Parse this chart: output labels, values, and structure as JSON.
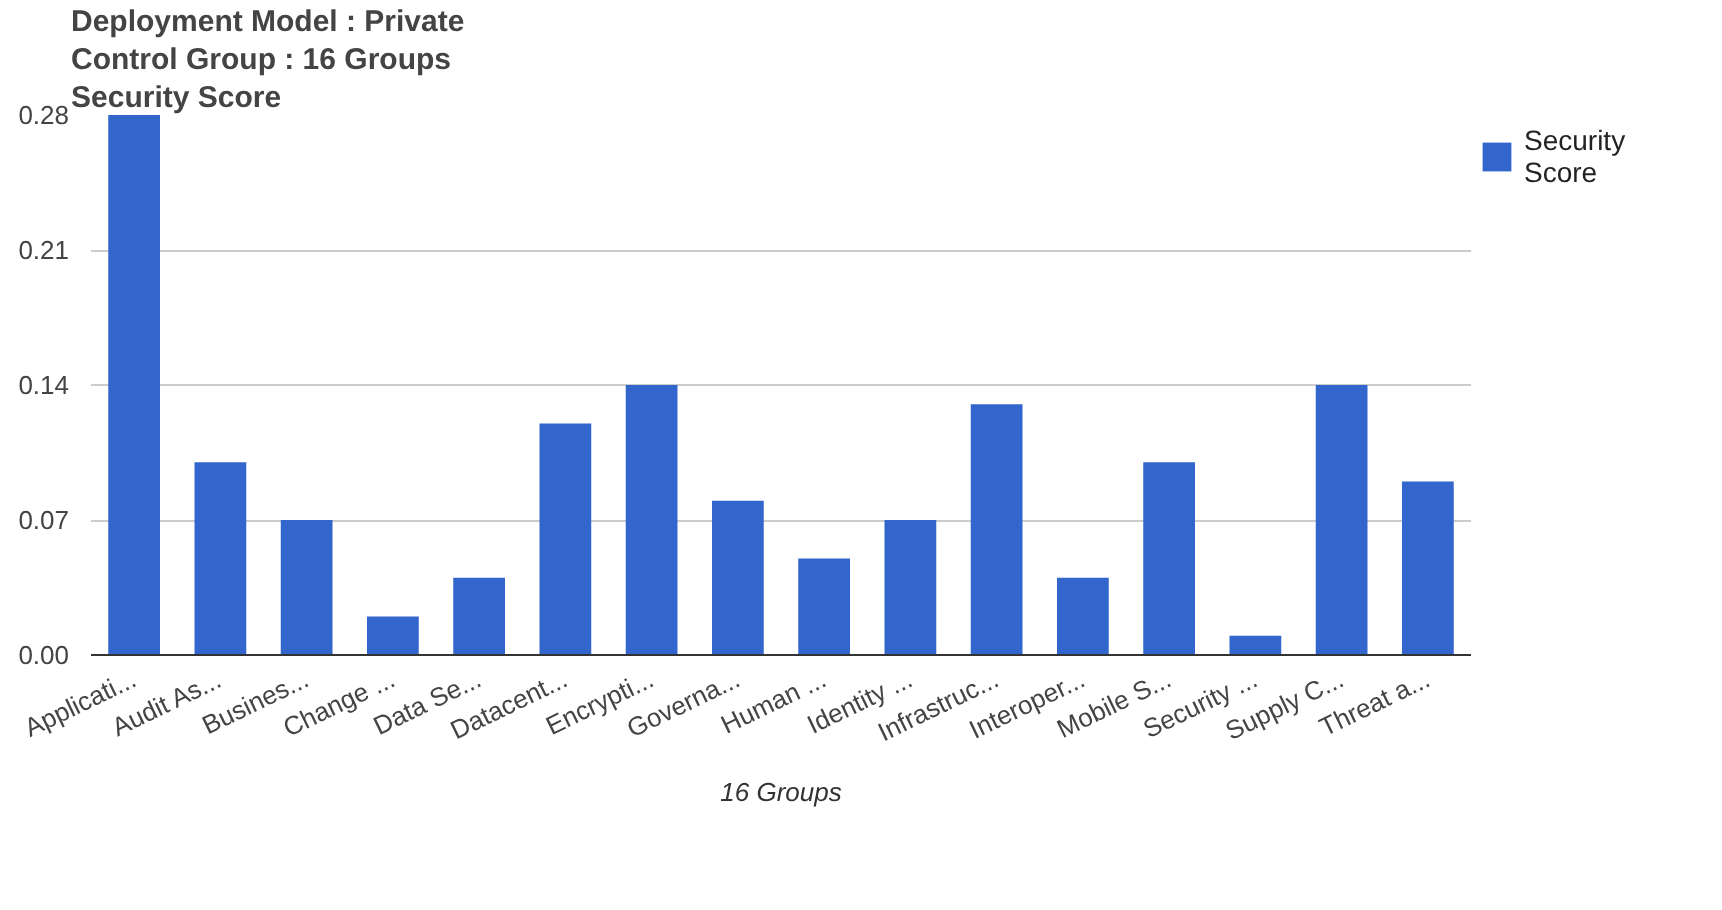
{
  "chart_data": {
    "type": "bar",
    "title": "Deployment Model : Private",
    "subtitle": "Control Group : 16 Groups",
    "ylabel": "Security Score",
    "xlabel": "16 Groups",
    "categories": [
      "Applicati...",
      "Audit As...",
      "Busines...",
      "Change ...",
      "Data Se...",
      "Datacent...",
      "Encrypti...",
      "Governa...",
      "Human ...",
      "Identity ...",
      "Infrastruc...",
      "Interoper...",
      "Mobile S...",
      "Security ...",
      "Supply C...",
      "Threat a..."
    ],
    "series": [
      {
        "name": "Security Score",
        "color": "#3366cc",
        "values": [
          0.28,
          0.1,
          0.07,
          0.02,
          0.04,
          0.12,
          0.14,
          0.08,
          0.05,
          0.07,
          0.13,
          0.04,
          0.1,
          0.01,
          0.14,
          0.09
        ]
      }
    ],
    "ylim": [
      0,
      0.28
    ],
    "yticks": [
      {
        "value": 0,
        "label": "0.00"
      },
      {
        "value": 0.07,
        "label": "0.07"
      },
      {
        "value": 0.14,
        "label": "0.14"
      },
      {
        "value": 0.21,
        "label": "0.21"
      },
      {
        "value": 0.28,
        "label": "0.28"
      }
    ],
    "grid": "y",
    "legend": "top right"
  }
}
